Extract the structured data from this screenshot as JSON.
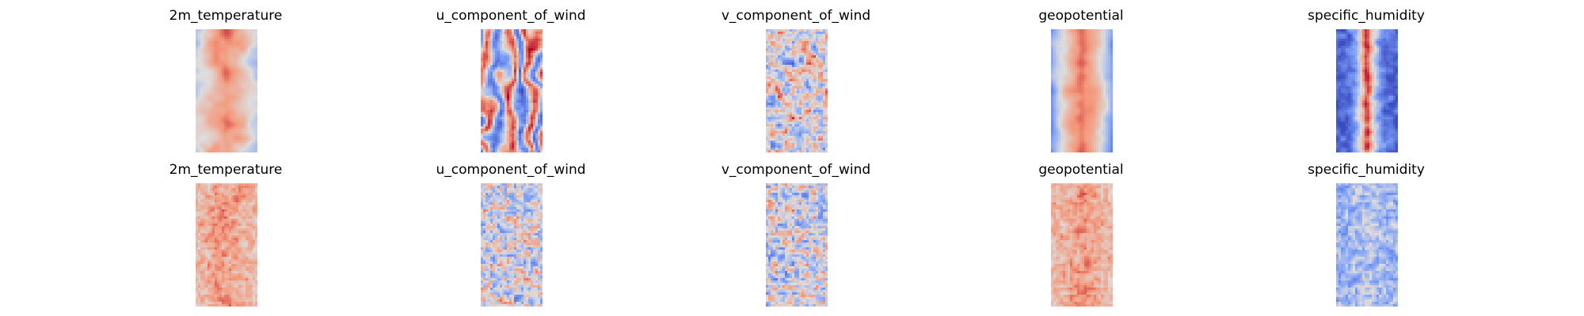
{
  "chart_data": {
    "type": "heatmap",
    "colormap": "coolwarm",
    "grid": false,
    "rows": [
      {
        "panels": [
          {
            "title": "2m_temperature",
            "pattern": "smooth-warm-core"
          },
          {
            "title": "u_component_of_wind",
            "pattern": "banded-mixed"
          },
          {
            "title": "v_component_of_wind",
            "pattern": "noisy-mixed"
          },
          {
            "title": "geopotential",
            "pattern": "smooth-warm-core-blue-edges"
          },
          {
            "title": "specific_humidity",
            "pattern": "red-stripe-blue-field"
          }
        ]
      },
      {
        "panels": [
          {
            "title": "2m_temperature",
            "pattern": "speckled-warm"
          },
          {
            "title": "u_component_of_wind",
            "pattern": "speckled-mixed"
          },
          {
            "title": "v_component_of_wind",
            "pattern": "speckled-mixed"
          },
          {
            "title": "geopotential",
            "pattern": "speckled-warm"
          },
          {
            "title": "specific_humidity",
            "pattern": "speckled-cool"
          }
        ]
      }
    ]
  }
}
